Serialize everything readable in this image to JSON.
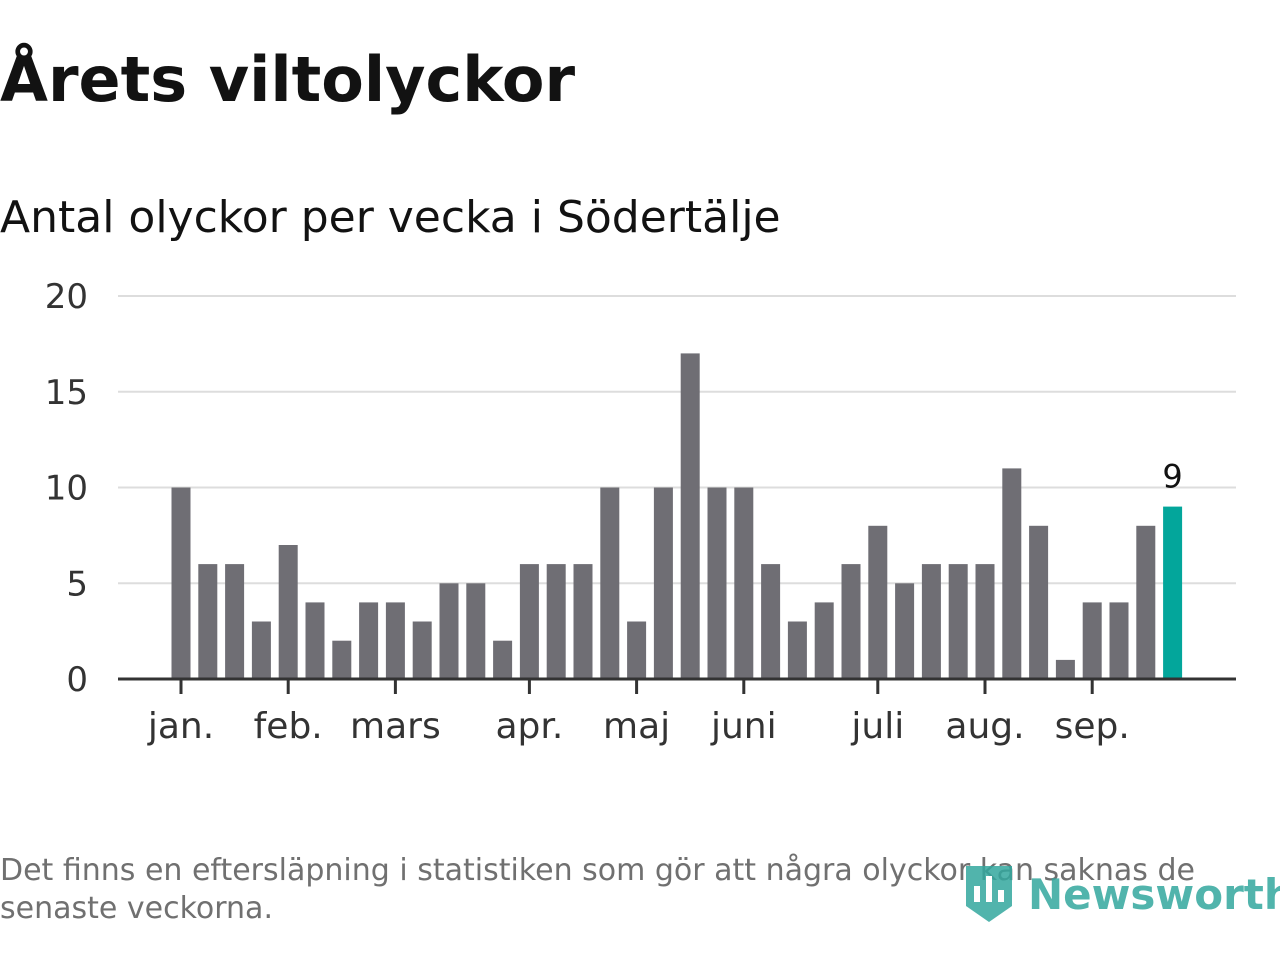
{
  "header": {
    "title": "Årets viltolyckor",
    "subtitle": "Antal olyckor per vecka i Södertälje"
  },
  "footer": {
    "note": "Det finns en eftersläpning i statistiken som gör att några olyckor kan saknas de senaste veckorna.",
    "brand": "Newsworthy",
    "brand_icon": "newsworthy-logo-icon"
  },
  "colors": {
    "bar": "#6f6e74",
    "highlight": "#03a69b",
    "grid": "#dddddd",
    "axis": "#333333",
    "brand": "#33a79e"
  },
  "chart_data": {
    "type": "bar",
    "title": "Antal olyckor per vecka i Södertälje",
    "xlabel": "",
    "ylabel": "",
    "ylim": [
      0,
      20
    ],
    "yticks": [
      0,
      5,
      10,
      15,
      20
    ],
    "grid": true,
    "weeks": [
      1,
      2,
      3,
      4,
      5,
      6,
      7,
      8,
      9,
      10,
      11,
      12,
      13,
      14,
      15,
      16,
      17,
      18,
      19,
      20,
      21,
      22,
      23,
      24,
      25,
      26,
      27,
      28,
      29,
      30,
      31,
      32,
      33,
      34,
      35,
      36,
      37,
      38
    ],
    "values": [
      10,
      6,
      6,
      3,
      7,
      4,
      2,
      4,
      4,
      3,
      5,
      5,
      2,
      6,
      6,
      6,
      10,
      3,
      10,
      17,
      10,
      10,
      6,
      3,
      4,
      6,
      8,
      5,
      6,
      6,
      6,
      11,
      8,
      1,
      4,
      4,
      8,
      9
    ],
    "highlight_index": 37,
    "highlight_label": "9",
    "month_ticks": [
      {
        "label": "jan.",
        "week": 1
      },
      {
        "label": "feb.",
        "week": 5
      },
      {
        "label": "mars",
        "week": 9
      },
      {
        "label": "apr.",
        "week": 14
      },
      {
        "label": "maj",
        "week": 18
      },
      {
        "label": "juni",
        "week": 22
      },
      {
        "label": "juli",
        "week": 27
      },
      {
        "label": "aug.",
        "week": 31
      },
      {
        "label": "sep.",
        "week": 35
      }
    ]
  }
}
